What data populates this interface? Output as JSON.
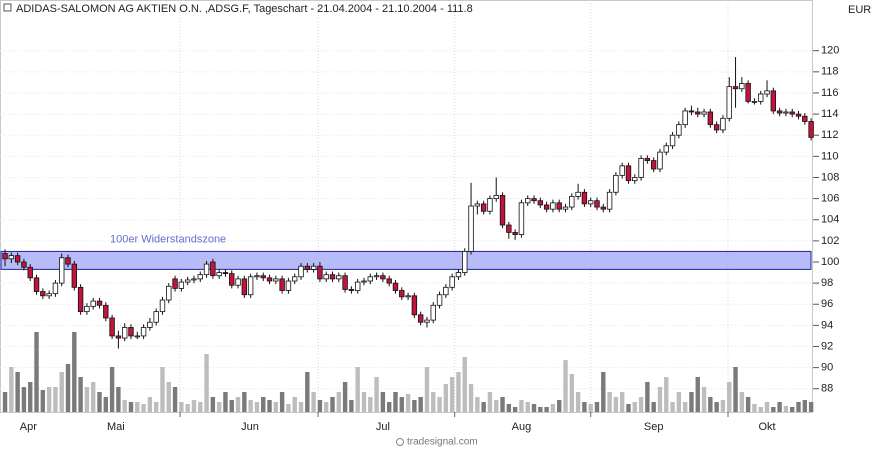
{
  "chart_data": {
    "type": "candlestick",
    "title": "ADIDAS-SALOMON AG AKTIEN O.N. ,ADSG.F, Tageschart - 21.04.2004 - 21.10.2004 - 111.8",
    "currency": "EUR",
    "footer": "tradesignal.com",
    "xlim": [
      -0.8,
      128.3
    ],
    "ylim": [
      85.8,
      124.8
    ],
    "yticks": [
      88,
      90,
      92,
      94,
      96,
      98,
      100,
      102,
      104,
      106,
      108,
      110,
      112,
      114,
      116,
      118,
      120
    ],
    "xticks": [
      {
        "value": 3.7,
        "label": "Apr"
      },
      {
        "value": 17.6,
        "label": "Mai"
      },
      {
        "value": 38.9,
        "label": "Jun"
      },
      {
        "value": 60,
        "label": "Jul"
      },
      {
        "value": 82,
        "label": "Aug"
      },
      {
        "value": 103,
        "label": "Sep"
      },
      {
        "value": 121,
        "label": "Okt"
      }
    ],
    "xgrid": [
      27.8,
      49.7,
      71.4,
      93.0,
      114.8
    ],
    "grid": true,
    "up_color": "#ffffff",
    "down_color": "#c0143c",
    "volume_up_color": "#bdbdbd",
    "volume_down_color": "#7a7a7a",
    "zone": {
      "label": "100er Widerstandszone",
      "low": 99.3,
      "high": 101,
      "color": "#aab0f8"
    },
    "open": [
      100.8,
      100.3,
      100.6,
      100.0,
      99.5,
      98.5,
      97.2,
      96.8,
      97.0,
      98.0,
      100.4,
      99.8,
      97.6,
      95.3,
      95.8,
      96.3,
      95.9,
      94.7,
      93.0,
      92.8,
      93.8,
      93.0,
      93.0,
      93.8,
      94.3,
      95.3,
      96.4,
      98.4,
      97.5,
      98.1,
      98.3,
      98.4,
      98.8,
      100.0,
      98.7,
      99.0,
      98.9,
      97.8,
      98.4,
      96.9,
      98.6,
      98.7,
      98.5,
      98.2,
      98.4,
      97.3,
      98.2,
      98.6,
      99.6,
      99.3,
      99.6,
      98.4,
      98.8,
      98.4,
      98.7,
      97.4,
      97.3,
      98.1,
      98.2,
      98.6,
      98.7,
      98.4,
      98.0,
      97.3,
      96.7,
      96.8,
      95.0,
      94.3,
      94.5,
      95.9,
      96.9,
      97.6,
      98.6,
      99.0,
      101.0,
      105.3,
      105.5,
      104.8,
      106.0,
      106.3,
      103.5,
      102.8,
      102.6,
      105.6,
      106.0,
      105.8,
      105.4,
      105.0,
      105.6,
      105.0,
      105.2,
      106.2,
      106.6,
      105.5,
      105.8,
      105.2,
      105.0,
      106.6,
      108.2,
      109.1,
      107.7,
      108.0,
      109.8,
      109.6,
      108.8,
      110.4,
      111.0,
      112.0,
      113.0,
      114.3,
      114.2,
      114.0,
      114.2,
      113.0,
      112.5,
      113.6,
      116.6,
      116.4,
      116.9,
      115.2,
      115.2,
      115.9,
      116.2,
      114.3,
      114.1,
      114.2,
      114.0,
      113.8,
      113.3
    ],
    "high": [
      101.2,
      100.9,
      100.9,
      100.3,
      99.8,
      98.8,
      97.5,
      97.3,
      98.3,
      100.8,
      100.7,
      100.1,
      97.9,
      96.1,
      96.6,
      96.6,
      96.2,
      95.0,
      93.5,
      94.2,
      94.1,
      93.4,
      94.1,
      94.7,
      95.6,
      96.7,
      98.0,
      98.7,
      98.4,
      98.6,
      98.7,
      99.1,
      100.1,
      100.3,
      99.3,
      99.3,
      99.2,
      98.7,
      98.7,
      98.9,
      99.0,
      99.0,
      98.8,
      98.7,
      98.7,
      98.5,
      98.9,
      99.9,
      99.9,
      99.9,
      100.0,
      99.1,
      99.1,
      99.0,
      99.0,
      97.7,
      98.4,
      98.5,
      98.9,
      99.0,
      99.0,
      98.7,
      98.3,
      97.6,
      97.1,
      97.1,
      95.3,
      94.8,
      96.2,
      97.2,
      97.9,
      98.9,
      99.3,
      101.3,
      107.5,
      105.8,
      105.8,
      106.3,
      108.0,
      106.6,
      103.8,
      103.1,
      105.9,
      106.3,
      106.3,
      106.1,
      105.7,
      105.9,
      105.9,
      105.5,
      106.5,
      107.4,
      106.9,
      106.1,
      106.1,
      105.5,
      106.9,
      108.5,
      109.4,
      109.4,
      108.3,
      110.1,
      110.1,
      109.9,
      110.7,
      111.3,
      112.3,
      113.3,
      114.6,
      114.8,
      114.6,
      114.5,
      114.5,
      113.3,
      113.9,
      117.5,
      119.4,
      117.5,
      117.2,
      115.5,
      116.2,
      117.2,
      116.5,
      114.6,
      114.5,
      114.5,
      114.3,
      114.1,
      113.6
    ],
    "low": [
      99.6,
      99.9,
      99.7,
      99.2,
      98.2,
      96.9,
      96.5,
      96.5,
      96.7,
      97.7,
      99.5,
      97.3,
      95.0,
      95.0,
      95.5,
      95.6,
      94.4,
      92.7,
      91.8,
      92.5,
      92.7,
      92.7,
      92.7,
      93.5,
      94.0,
      95.0,
      96.1,
      97.2,
      97.2,
      97.8,
      98.0,
      98.1,
      98.5,
      98.4,
      98.4,
      98.6,
      97.5,
      97.5,
      96.6,
      96.6,
      98.3,
      98.2,
      97.9,
      97.9,
      97.0,
      97.0,
      97.9,
      98.3,
      99.0,
      99.0,
      98.1,
      98.1,
      98.1,
      98.1,
      97.1,
      97.0,
      97.0,
      97.8,
      97.9,
      98.3,
      98.1,
      97.7,
      97.0,
      96.4,
      96.4,
      94.7,
      94.0,
      93.8,
      94.2,
      95.6,
      96.6,
      97.3,
      98.3,
      98.7,
      100.7,
      104.5,
      104.5,
      104.5,
      105.7,
      103.2,
      102.2,
      102.1,
      102.3,
      105.3,
      105.5,
      105.1,
      104.7,
      104.7,
      104.7,
      104.7,
      104.9,
      105.9,
      105.2,
      105.2,
      104.9,
      104.7,
      104.7,
      106.3,
      107.9,
      107.4,
      107.4,
      107.7,
      109.3,
      108.5,
      108.5,
      110.1,
      110.7,
      111.7,
      112.7,
      113.9,
      113.7,
      113.7,
      112.7,
      112.2,
      112.2,
      113.3,
      114.6,
      116.1,
      115.0,
      114.9,
      114.9,
      115.6,
      114.0,
      113.8,
      113.8,
      113.7,
      113.5,
      113.0,
      111.5
    ],
    "close": [
      100.3,
      100.6,
      100.0,
      99.5,
      98.5,
      97.2,
      96.8,
      97.0,
      98.0,
      100.4,
      99.8,
      97.6,
      95.3,
      95.8,
      96.3,
      95.9,
      94.7,
      93.0,
      92.8,
      93.8,
      93.0,
      93.0,
      93.8,
      94.3,
      95.3,
      96.4,
      97.7,
      97.5,
      98.1,
      98.3,
      98.4,
      98.8,
      99.8,
      98.7,
      99.0,
      98.9,
      97.8,
      98.4,
      96.9,
      98.6,
      98.7,
      98.5,
      98.2,
      98.4,
      97.3,
      98.2,
      98.6,
      99.6,
      99.3,
      99.6,
      98.4,
      98.8,
      98.4,
      98.7,
      97.4,
      97.3,
      98.1,
      98.2,
      98.6,
      98.7,
      98.4,
      98.0,
      97.3,
      96.7,
      96.8,
      95.0,
      94.3,
      94.5,
      95.9,
      96.9,
      97.6,
      98.6,
      99.0,
      101.0,
      105.3,
      105.5,
      104.8,
      106.0,
      106.3,
      103.5,
      102.8,
      102.6,
      105.6,
      106.0,
      105.8,
      105.4,
      105.0,
      105.6,
      105.0,
      105.2,
      106.2,
      106.6,
      105.5,
      105.8,
      105.2,
      105.0,
      106.6,
      108.2,
      109.1,
      107.7,
      108.0,
      109.8,
      109.6,
      108.8,
      110.4,
      111.0,
      112.0,
      113.0,
      114.3,
      114.2,
      114.0,
      114.2,
      113.0,
      112.5,
      113.6,
      116.6,
      116.4,
      116.9,
      115.2,
      115.2,
      115.9,
      116.2,
      114.3,
      114.1,
      114.2,
      114.0,
      113.8,
      113.3,
      111.8
    ],
    "volume": [
      20,
      45,
      40,
      25,
      30,
      80,
      22,
      25,
      25,
      40,
      48,
      80,
      35,
      25,
      30,
      20,
      15,
      45,
      25,
      12,
      10,
      10,
      8,
      15,
      10,
      45,
      30,
      25,
      10,
      8,
      12,
      10,
      58,
      15,
      10,
      20,
      12,
      15,
      20,
      12,
      10,
      15,
      12,
      10,
      20,
      8,
      15,
      10,
      40,
      20,
      12,
      10,
      15,
      20,
      30,
      12,
      45,
      20,
      15,
      35,
      20,
      10,
      20,
      15,
      18,
      12,
      15,
      45,
      20,
      15,
      28,
      35,
      40,
      55,
      28,
      15,
      10,
      20,
      12,
      15,
      8,
      5,
      12,
      10,
      8,
      5,
      5,
      8,
      12,
      52,
      38,
      20,
      10,
      8,
      10,
      40,
      20,
      15,
      20,
      8,
      10,
      15,
      30,
      10,
      25,
      35,
      10,
      20,
      10,
      20,
      35,
      25,
      15,
      10,
      12,
      30,
      45,
      20,
      15,
      8,
      5,
      10,
      5,
      10,
      6,
      5,
      10,
      12,
      10
    ]
  }
}
